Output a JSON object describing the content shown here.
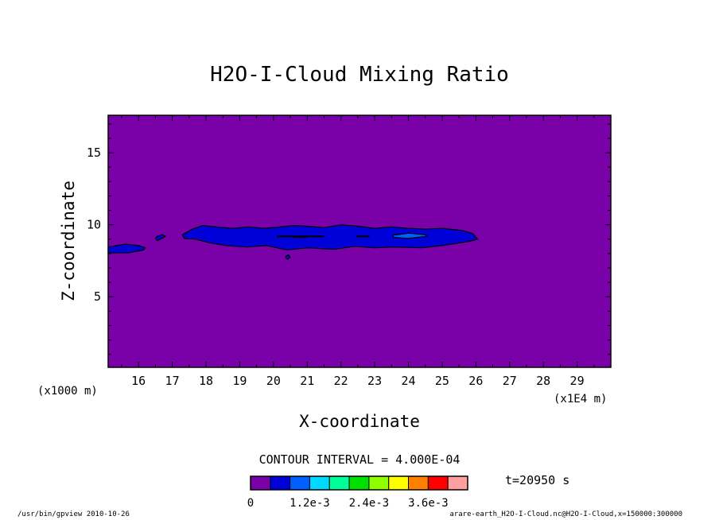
{
  "chart_data": {
    "type": "heatmap",
    "title": "H2O-I-Cloud Mixing Ratio",
    "xlabel": "X-coordinate",
    "ylabel": "Z-coordinate",
    "x_unit_left": "(x1000 m)",
    "x_unit_right": "(x1E4 m)",
    "xlim": [
      15.1,
      30.0
    ],
    "ylim": [
      0.1,
      17.6
    ],
    "x_ticks": [
      "16",
      "17",
      "18",
      "19",
      "20",
      "21",
      "22",
      "23",
      "24",
      "25",
      "26",
      "27",
      "28",
      "29"
    ],
    "y_ticks": [
      "5",
      "10",
      "15"
    ],
    "contour_interval_text": "CONTOUR INTERVAL = 4.000E-04",
    "time_text": "t=20950 s",
    "background_color": "#7a00a8",
    "colorbar": {
      "colors": [
        "#7a00a8",
        "#0000d8",
        "#0060ff",
        "#00d8ff",
        "#00ff98",
        "#00e000",
        "#90ff00",
        "#ffff00",
        "#ff8000",
        "#ff0000",
        "#ffa0a0"
      ],
      "labels": [
        "0",
        "1.2e-3",
        "2.4e-3",
        "3.6e-3"
      ]
    },
    "regions": [
      {
        "level": 1,
        "color": "#0000d8",
        "points": [
          [
            15.1,
            8.45
          ],
          [
            15.6,
            8.65
          ],
          [
            16.0,
            8.55
          ],
          [
            16.2,
            8.4
          ],
          [
            16.15,
            8.25
          ],
          [
            15.7,
            8.05
          ],
          [
            15.1,
            8.05
          ]
        ]
      },
      {
        "level": 1,
        "color": "#0000d8",
        "points": [
          [
            16.55,
            9.2
          ],
          [
            16.7,
            9.3
          ],
          [
            16.8,
            9.2
          ],
          [
            16.65,
            9.0
          ],
          [
            16.55,
            8.9
          ],
          [
            16.5,
            9.05
          ]
        ]
      },
      {
        "level": 1,
        "color": "#0000d8",
        "points": [
          [
            17.3,
            9.3
          ],
          [
            17.6,
            9.7
          ],
          [
            17.9,
            9.95
          ],
          [
            18.3,
            9.85
          ],
          [
            18.8,
            9.75
          ],
          [
            19.3,
            9.85
          ],
          [
            19.7,
            9.75
          ],
          [
            20.2,
            9.85
          ],
          [
            20.6,
            9.95
          ],
          [
            21.0,
            9.9
          ],
          [
            21.5,
            9.8
          ],
          [
            22.0,
            10.0
          ],
          [
            22.5,
            9.9
          ],
          [
            23.0,
            9.75
          ],
          [
            23.5,
            9.85
          ],
          [
            24.0,
            9.75
          ],
          [
            24.5,
            9.7
          ],
          [
            25.0,
            9.75
          ],
          [
            25.6,
            9.6
          ],
          [
            25.9,
            9.4
          ],
          [
            26.05,
            9.0
          ],
          [
            25.8,
            8.85
          ],
          [
            25.0,
            8.55
          ],
          [
            24.4,
            8.4
          ],
          [
            23.6,
            8.45
          ],
          [
            23.0,
            8.4
          ],
          [
            22.4,
            8.5
          ],
          [
            21.8,
            8.3
          ],
          [
            21.0,
            8.4
          ],
          [
            20.4,
            8.25
          ],
          [
            19.8,
            8.55
          ],
          [
            19.2,
            8.45
          ],
          [
            18.6,
            8.55
          ],
          [
            18.1,
            8.75
          ],
          [
            17.7,
            9.0
          ],
          [
            17.35,
            9.05
          ]
        ]
      },
      {
        "level": 1,
        "color": "#0000d8",
        "points": [
          [
            20.38,
            7.85
          ],
          [
            20.45,
            7.9
          ],
          [
            20.5,
            7.75
          ],
          [
            20.42,
            7.6
          ],
          [
            20.36,
            7.72
          ]
        ]
      },
      {
        "level": 2,
        "color": "#0060ff",
        "points": [
          [
            23.55,
            9.27
          ],
          [
            24.0,
            9.42
          ],
          [
            24.5,
            9.3
          ],
          [
            24.55,
            9.2
          ],
          [
            24.0,
            9.05
          ],
          [
            23.55,
            9.13
          ]
        ]
      }
    ],
    "contour_lines": [
      [
        [
          20.1,
          9.2
        ],
        [
          21.5,
          9.2
        ]
      ],
      [
        [
          22.45,
          9.2
        ],
        [
          22.85,
          9.2
        ]
      ],
      [
        [
          20.6,
          9.15
        ],
        [
          21.0,
          9.15
        ]
      ]
    ]
  },
  "footer": {
    "left": "/usr/bin/gpview   2010-10-26",
    "right": "arare-earth_H2O-I-Cloud.nc@H2O-I-Cloud,x=150000:300000"
  }
}
